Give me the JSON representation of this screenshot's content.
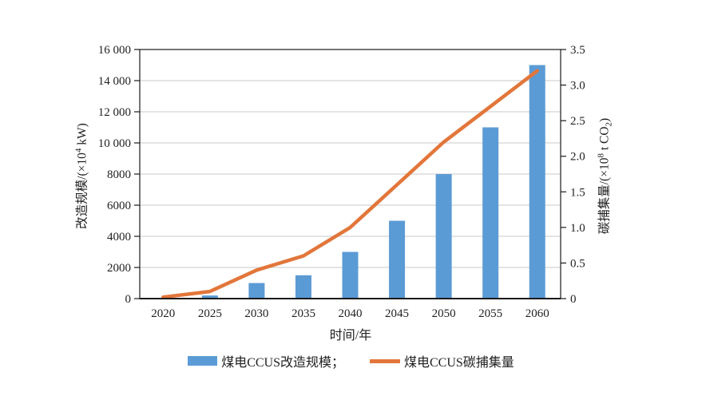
{
  "colors": {
    "bar": "#5b9bd5",
    "line": "#e2763b",
    "grid": "#d4d4d4",
    "axis": "#1a1a1a",
    "text": "#1f1f1f"
  },
  "axes": {
    "left": {
      "title_prefix": "改造规模/(×10",
      "title_sup": "4",
      "title_suffix": " kW)"
    },
    "right": {
      "title_prefix": "碳捕集量/(×10",
      "title_sup": "8",
      "title_mid": " t CO",
      "title_sub": "2",
      "title_suffix": ")"
    }
  },
  "chart_data": {
    "type": "bar+line dual-axis",
    "title": "",
    "xlabel": "时间/年",
    "grid": "horizontal",
    "legend_position": "bottom-center",
    "categories": [
      "2020",
      "2025",
      "2030",
      "2035",
      "2040",
      "2045",
      "2050",
      "2055",
      "2060"
    ],
    "left_axis": {
      "label": "改造规模/(×10⁴ kW)",
      "min": 0,
      "max": 16000,
      "tick_labels": [
        "0",
        "2000",
        "4000",
        "6000",
        "8000",
        "10 000",
        "12 000",
        "14 000",
        "16 000"
      ]
    },
    "right_axis": {
      "label": "碳捕集量/(×10⁸ t CO₂)",
      "min": 0,
      "max": 3.5,
      "tick_labels": [
        "0",
        "0.5",
        "1.0",
        "1.5",
        "2.0",
        "2.5",
        "3.0",
        "3.5"
      ]
    },
    "series": [
      {
        "name": "煤电CCUS改造规模",
        "legend_label": "煤电CCUS改造规模；",
        "type": "bar",
        "axis": "left",
        "values": [
          0,
          200,
          1000,
          1500,
          3000,
          5000,
          8000,
          11000,
          15000
        ]
      },
      {
        "name": "煤电CCUS碳捕集量",
        "legend_label": "煤电CCUS碳捕集量",
        "type": "line",
        "axis": "right",
        "values": [
          0.02,
          0.1,
          0.4,
          0.6,
          1.0,
          1.6,
          2.2,
          2.7,
          3.2
        ]
      }
    ]
  }
}
